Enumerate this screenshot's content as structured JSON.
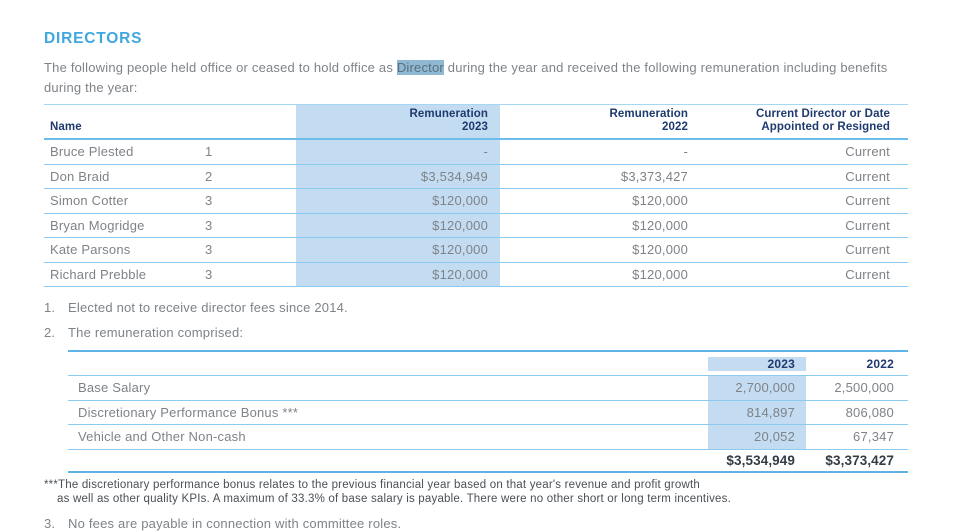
{
  "colors": {
    "accent_blue": "#3FA7E0",
    "header_navy": "#1F3A6E",
    "body_gray": "#7E8388",
    "column_highlight": "#C4DCF2",
    "selection_highlight": "#8FB9D2",
    "rule_light": "#8CCAEF",
    "rule_medium": "#5FB3E7",
    "total_text": "#343C44"
  },
  "heading": "DIRECTORS",
  "intro": {
    "before": "The following people held office or ceased to hold office as ",
    "highlight": "Director",
    "after": " during the year and received the following remuneration including benefits during the year:"
  },
  "directors_table": {
    "headers": {
      "name": "Name",
      "rem_2023": "Remuneration\n2023",
      "rem_2022": "Remuneration\n2022",
      "status": "Current Director or Date\nAppointed or Resigned"
    },
    "rows": [
      {
        "name": "Bruce Plested",
        "note_ref": "1",
        "rem_2023": "-",
        "rem_2022": "-",
        "status": "Current"
      },
      {
        "name": "Don Braid",
        "note_ref": "2",
        "rem_2023": "$3,534,949",
        "rem_2022": "$3,373,427",
        "status": "Current"
      },
      {
        "name": "Simon Cotter",
        "note_ref": "3",
        "rem_2023": "$120,000",
        "rem_2022": "$120,000",
        "status": "Current"
      },
      {
        "name": "Bryan Mogridge",
        "note_ref": "3",
        "rem_2023": "$120,000",
        "rem_2022": "$120,000",
        "status": "Current"
      },
      {
        "name": "Kate Parsons",
        "note_ref": "3",
        "rem_2023": "$120,000",
        "rem_2022": "$120,000",
        "status": "Current"
      },
      {
        "name": "Richard Prebble",
        "note_ref": "3",
        "rem_2023": "$120,000",
        "rem_2022": "$120,000",
        "status": "Current"
      }
    ]
  },
  "notes": {
    "note1": {
      "num": "1.",
      "text": "Elected not to receive director fees since 2014."
    },
    "note2": {
      "num": "2.",
      "text": "The remuneration comprised:"
    },
    "note3": {
      "num": "3.",
      "text": "No fees are payable in connection with committee roles."
    }
  },
  "remuneration_table": {
    "headers": {
      "y2023": "2023",
      "y2022": "2022"
    },
    "rows": [
      {
        "label": "Base Salary",
        "v2023": "2,700,000",
        "v2022": "2,500,000"
      },
      {
        "label": "Discretionary Performance Bonus ***",
        "v2023": "814,897",
        "v2022": "806,080"
      },
      {
        "label": "Vehicle and Other Non-cash",
        "v2023": "20,052",
        "v2022": "67,347"
      }
    ],
    "total": {
      "v2023": "$3,534,949",
      "v2022": "$3,373,427"
    }
  },
  "footnote": "***The discretionary performance bonus relates to the previous financial year based on that year's revenue and profit growth\nas well as other quality KPIs. A maximum of 33.3% of base salary is payable. There were no other short or long term incentives."
}
